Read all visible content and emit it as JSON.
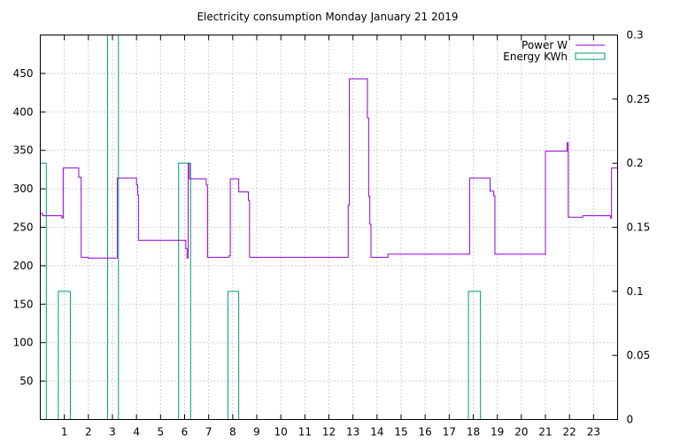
{
  "chart_data": {
    "type": "line",
    "title": "Electricity consumption Monday January 21 2019",
    "xlim": [
      0,
      24
    ],
    "ylim": [
      0,
      500
    ],
    "y2lim": [
      0,
      0.3
    ],
    "x_ticks": [
      1,
      2,
      3,
      4,
      5,
      6,
      7,
      8,
      9,
      10,
      11,
      12,
      13,
      14,
      15,
      16,
      17,
      18,
      19,
      20,
      21,
      22,
      23
    ],
    "y_ticks": [
      50,
      100,
      150,
      200,
      250,
      300,
      350,
      400,
      450
    ],
    "y2_ticks": [
      "0",
      "0.05",
      "0.1",
      "0.15",
      "0.2",
      "0.25",
      "0.3"
    ],
    "y2_tick_values": [
      0,
      0.05,
      0.1,
      0.15,
      0.2,
      0.25,
      0.3
    ],
    "grid": true,
    "legend_position": "top-right",
    "colors": {
      "power": "#9400d3",
      "energy": "#009e73"
    },
    "series": [
      {
        "name": "Power W",
        "axis": "y",
        "style": "steps",
        "points": [
          [
            0.0,
            268
          ],
          [
            0.1,
            268
          ],
          [
            0.1,
            265
          ],
          [
            0.9,
            265
          ],
          [
            0.9,
            262
          ],
          [
            0.95,
            262
          ],
          [
            0.95,
            327
          ],
          [
            1.6,
            327
          ],
          [
            1.6,
            315
          ],
          [
            1.7,
            315
          ],
          [
            1.7,
            211
          ],
          [
            2.0,
            211
          ],
          [
            2.0,
            210
          ],
          [
            3.2,
            210
          ],
          [
            3.2,
            314
          ],
          [
            4.0,
            314
          ],
          [
            4.0,
            305
          ],
          [
            4.05,
            305
          ],
          [
            4.05,
            292
          ],
          [
            4.08,
            292
          ],
          [
            4.08,
            233
          ],
          [
            6.05,
            233
          ],
          [
            6.05,
            222
          ],
          [
            6.1,
            222
          ],
          [
            6.1,
            210
          ],
          [
            6.15,
            210
          ],
          [
            6.15,
            333
          ],
          [
            6.2,
            333
          ],
          [
            6.2,
            313
          ],
          [
            6.9,
            313
          ],
          [
            6.9,
            305
          ],
          [
            6.95,
            305
          ],
          [
            6.95,
            211
          ],
          [
            7.85,
            211
          ],
          [
            7.85,
            213
          ],
          [
            7.9,
            213
          ],
          [
            7.9,
            313
          ],
          [
            8.25,
            313
          ],
          [
            8.25,
            296
          ],
          [
            8.65,
            296
          ],
          [
            8.65,
            285
          ],
          [
            8.7,
            285
          ],
          [
            8.7,
            211
          ],
          [
            12.8,
            211
          ],
          [
            12.8,
            279
          ],
          [
            12.85,
            279
          ],
          [
            12.85,
            443
          ],
          [
            13.6,
            443
          ],
          [
            13.6,
            392
          ],
          [
            13.65,
            392
          ],
          [
            13.65,
            290
          ],
          [
            13.7,
            290
          ],
          [
            13.7,
            254
          ],
          [
            13.75,
            254
          ],
          [
            13.75,
            211
          ],
          [
            14.45,
            211
          ],
          [
            14.45,
            215
          ],
          [
            17.85,
            215
          ],
          [
            17.85,
            314
          ],
          [
            18.7,
            314
          ],
          [
            18.7,
            297
          ],
          [
            18.85,
            297
          ],
          [
            18.85,
            291
          ],
          [
            18.9,
            291
          ],
          [
            18.9,
            215
          ],
          [
            21.0,
            215
          ],
          [
            21.0,
            349
          ],
          [
            21.9,
            349
          ],
          [
            21.9,
            360
          ],
          [
            21.95,
            360
          ],
          [
            21.95,
            263
          ],
          [
            22.55,
            263
          ],
          [
            22.55,
            265
          ],
          [
            23.7,
            265
          ],
          [
            23.7,
            262
          ],
          [
            23.75,
            262
          ],
          [
            23.75,
            327
          ],
          [
            24.0,
            327
          ]
        ]
      },
      {
        "name": "Energy KWh",
        "axis": "y2",
        "style": "boxes",
        "bars": [
          {
            "start": 0.0,
            "end": 0.25,
            "value": 0.2
          },
          {
            "start": 0.75,
            "end": 1.25,
            "value": 0.1
          },
          {
            "start": 2.8,
            "end": 3.25,
            "value": 0.3
          },
          {
            "start": 5.75,
            "end": 6.25,
            "value": 0.2
          },
          {
            "start": 7.8,
            "end": 8.25,
            "value": 0.1
          },
          {
            "start": 17.8,
            "end": 18.3,
            "value": 0.1
          }
        ]
      }
    ]
  }
}
